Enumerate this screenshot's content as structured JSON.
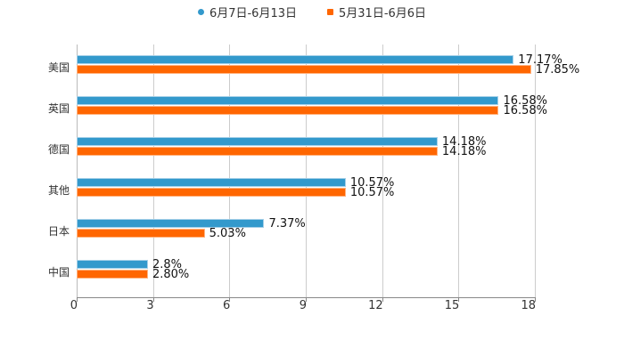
{
  "chart_data": {
    "type": "bar",
    "orientation": "horizontal",
    "title": "",
    "xlabel": "",
    "ylabel": "",
    "xlim": [
      0,
      18
    ],
    "x_ticks": [
      "0",
      "3",
      "6",
      "9",
      "12",
      "15",
      "18"
    ],
    "grid": true,
    "legend_position": "top",
    "categories": [
      "美国",
      "英国",
      "德国",
      "其他",
      "日本",
      "中国"
    ],
    "series": [
      {
        "name": "6月7日-6月13日",
        "color": "#3399cc",
        "values": [
          17.17,
          16.58,
          14.18,
          10.57,
          7.37,
          2.8
        ],
        "labels": [
          "17.17%",
          "16.58%",
          "14.18%",
          "10.57%",
          "7.37%",
          "2.8%"
        ]
      },
      {
        "name": "5月31日-6月6日",
        "color": "#ff6600",
        "values": [
          17.85,
          16.58,
          14.18,
          10.57,
          5.03,
          2.8
        ],
        "labels": [
          "17.85%",
          "16.58%",
          "14.18%",
          "10.57%",
          "5.03%",
          "2.80%"
        ]
      }
    ]
  },
  "legend": [
    {
      "label": "6月7日-6月13日",
      "color": "#3399cc"
    },
    {
      "label": "5月31日-6月6日",
      "color": "#ff6600"
    }
  ]
}
